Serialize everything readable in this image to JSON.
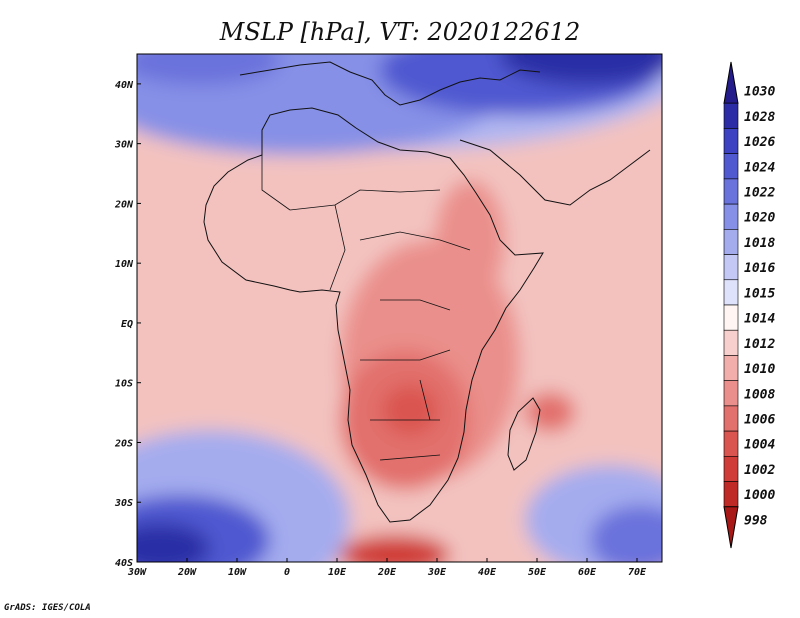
{
  "chart_data": {
    "type": "heatmap",
    "title": "MSLP [hPa], VT: 2020122612",
    "variable": "MSLP",
    "units": "hPa",
    "valid_time": "2020122612",
    "x_ticks": [
      "30W",
      "20W",
      "10W",
      "0",
      "10E",
      "20E",
      "30E",
      "40E",
      "50E",
      "60E",
      "70E"
    ],
    "y_ticks": [
      "40N",
      "30N",
      "20N",
      "10N",
      "EQ",
      "10S",
      "20S",
      "30S",
      "40S"
    ],
    "lon_range": [
      -30,
      75
    ],
    "lat_range": [
      -40,
      45
    ],
    "colorbar_levels": [
      "1030",
      "1028",
      "1026",
      "1024",
      "1022",
      "1020",
      "1018",
      "1016",
      "1015",
      "1014",
      "1012",
      "1010",
      "1008",
      "1006",
      "1004",
      "1002",
      "1000",
      "998"
    ],
    "colorbar_colors": [
      "#241c8a",
      "#2c2da6",
      "#3c42c2",
      "#5059d0",
      "#6a72dc",
      "#8690e6",
      "#a4acee",
      "#c3c8f5",
      "#dfe2fb",
      "#fff5f2",
      "#f7d0ce",
      "#f1aeab",
      "#ea8f8b",
      "#e2706c",
      "#da5550",
      "#d03d38",
      "#c02a26",
      "#a81816"
    ],
    "credit": "GrADS: IGES/COLA"
  }
}
